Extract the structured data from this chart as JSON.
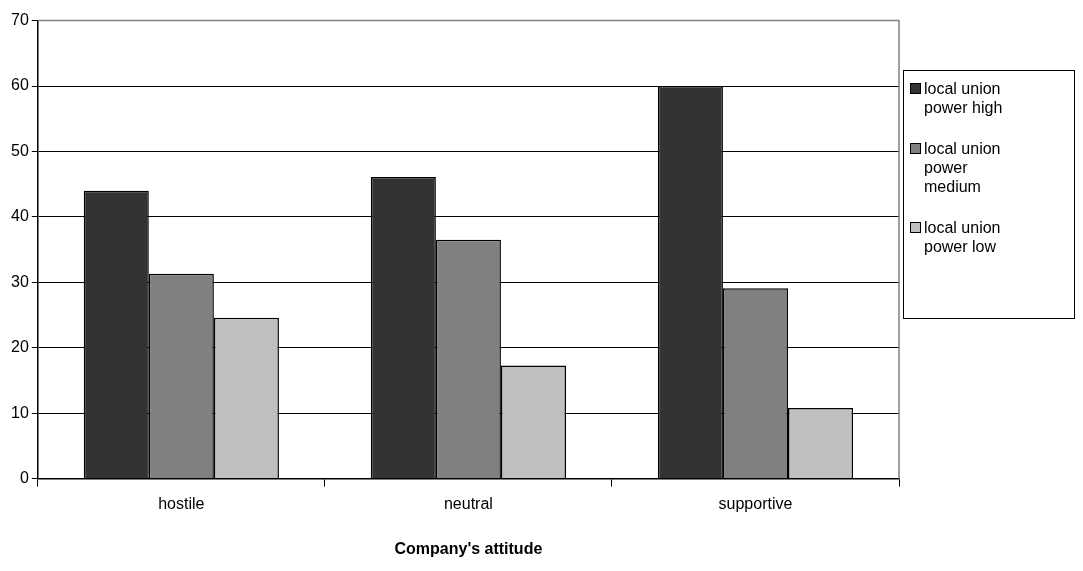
{
  "chart_data": {
    "type": "bar",
    "xlabel": "Company's attitude",
    "categories": [
      "hostile",
      "neutral",
      "supportive"
    ],
    "series": [
      {
        "name": "local union power high",
        "color": "#333333",
        "values": [
          44,
          46.1,
          60
        ]
      },
      {
        "name": "local union power medium",
        "color": "#808080",
        "values": [
          31.3,
          36.5,
          29.1
        ]
      },
      {
        "name": "local union power low",
        "color": "#c0c0c0",
        "values": [
          24.6,
          17.3,
          10.8
        ]
      }
    ],
    "ylim": [
      0,
      70
    ],
    "yticks": [
      0,
      10,
      20,
      30,
      40,
      50,
      60,
      70
    ],
    "grid": "y",
    "legend": "right"
  }
}
